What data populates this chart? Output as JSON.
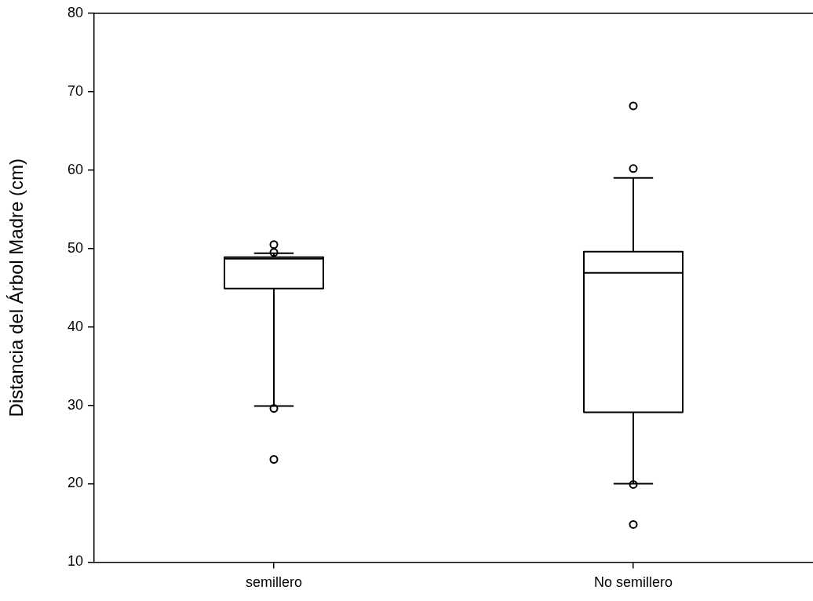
{
  "chart_data": {
    "type": "box",
    "ylabel": "Distancia del Árbol Madre (cm)",
    "categories": [
      "semillero",
      "No semillero"
    ],
    "boxes": [
      {
        "low": 29.9,
        "q1": 44.9,
        "median": 48.7,
        "q3": 48.9,
        "high": 49.4,
        "outliers": [
          50.5,
          49.5,
          29.6,
          23.1
        ]
      },
      {
        "low": 20.0,
        "q1": 29.1,
        "median": 46.9,
        "q3": 49.6,
        "high": 59.0,
        "outliers": [
          68.2,
          60.2,
          19.9,
          14.8
        ]
      }
    ],
    "color": "#000000",
    "ylim": [
      10,
      80
    ],
    "yticks": [
      10,
      20,
      30,
      40,
      50,
      60,
      70,
      80
    ],
    "grid": false,
    "legend": false
  }
}
